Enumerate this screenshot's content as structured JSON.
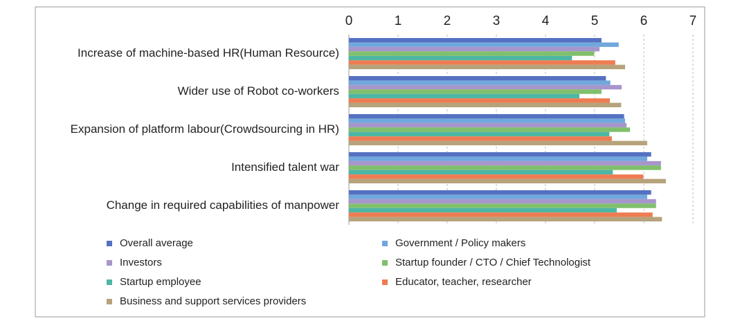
{
  "chart_data": {
    "type": "bar",
    "orientation": "horizontal",
    "categories": [
      "Increase of machine-based HR(Human Resource)",
      "Wider use of Robot co-workers",
      "Expansion of platform labour(Crowdsourcing in HR)",
      "Intensified talent war",
      "Change in required capabilities of manpower"
    ],
    "series": [
      {
        "name": "Overall average",
        "color": "#5571c2",
        "values": [
          5.14,
          5.23,
          5.6,
          6.15,
          6.15
        ]
      },
      {
        "name": "Government / Policy makers",
        "color": "#70a7dc",
        "values": [
          5.49,
          5.32,
          5.62,
          6.07,
          6.07
        ]
      },
      {
        "name": "Investors",
        "color": "#a796cb",
        "values": [
          5.1,
          5.55,
          5.65,
          6.35,
          6.25
        ]
      },
      {
        "name": "Startup founder / CTO / Chief Technologist",
        "color": "#80bf6b",
        "values": [
          4.99,
          5.14,
          5.72,
          6.35,
          6.25
        ]
      },
      {
        "name": "Startup employee",
        "color": "#4db6a4",
        "values": [
          4.54,
          4.69,
          5.3,
          5.37,
          5.45
        ]
      },
      {
        "name": "Educator, teacher, researcher",
        "color": "#ee7c53",
        "values": [
          5.42,
          5.31,
          5.35,
          5.99,
          6.18
        ]
      },
      {
        "name": "Business and support services providers",
        "color": "#b6a37b",
        "values": [
          5.62,
          5.54,
          6.07,
          6.45,
          6.37
        ]
      }
    ],
    "xlim": [
      0,
      7
    ],
    "xticks": [
      0,
      1,
      2,
      3,
      4,
      5,
      6,
      7
    ],
    "grid": true,
    "legend": "bottom"
  }
}
